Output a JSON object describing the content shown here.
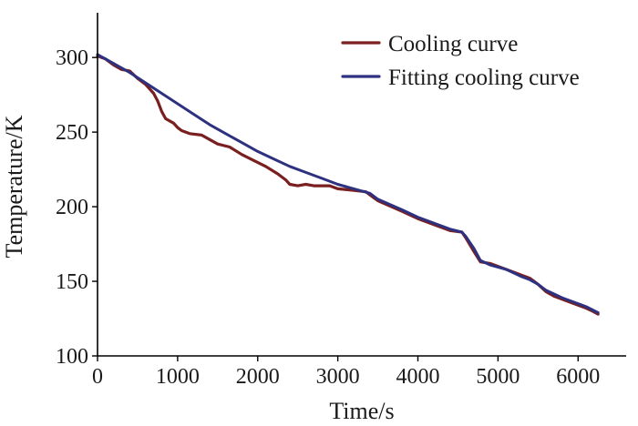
{
  "chart_data": {
    "type": "line",
    "title": "",
    "xlabel": "Time/s",
    "ylabel": "Temperature/K",
    "xlim": [
      0,
      6600
    ],
    "ylim": [
      100,
      330
    ],
    "xticks": [
      0,
      1000,
      2000,
      3000,
      4000,
      5000,
      6000
    ],
    "yticks": [
      100,
      150,
      200,
      250,
      300
    ],
    "xtick_labels": [
      "0",
      "1000",
      "2000",
      "3000",
      "4000",
      "5000",
      "6000"
    ],
    "ytick_labels": [
      "100",
      "150",
      "200",
      "250",
      "300"
    ],
    "grid": false,
    "legend_position": "top-right",
    "series": [
      {
        "name": "Cooling curve",
        "color": "#7a1f1f",
        "points": [
          [
            0,
            301
          ],
          [
            100,
            299
          ],
          [
            200,
            295
          ],
          [
            300,
            292
          ],
          [
            400,
            291
          ],
          [
            500,
            286
          ],
          [
            600,
            282
          ],
          [
            700,
            276
          ],
          [
            750,
            271
          ],
          [
            800,
            264
          ],
          [
            850,
            259
          ],
          [
            950,
            256
          ],
          [
            1000,
            253
          ],
          [
            1050,
            251
          ],
          [
            1150,
            249
          ],
          [
            1300,
            248
          ],
          [
            1400,
            245
          ],
          [
            1500,
            242
          ],
          [
            1650,
            240
          ],
          [
            1800,
            235
          ],
          [
            1950,
            231
          ],
          [
            2100,
            227
          ],
          [
            2250,
            222
          ],
          [
            2350,
            218
          ],
          [
            2400,
            215
          ],
          [
            2500,
            214
          ],
          [
            2600,
            215
          ],
          [
            2700,
            214
          ],
          [
            2900,
            214
          ],
          [
            3000,
            212
          ],
          [
            3200,
            211
          ],
          [
            3350,
            210
          ],
          [
            3450,
            206
          ],
          [
            3500,
            204
          ],
          [
            3800,
            197
          ],
          [
            4000,
            192
          ],
          [
            4200,
            188
          ],
          [
            4400,
            184
          ],
          [
            4550,
            183
          ],
          [
            4600,
            179
          ],
          [
            4700,
            170
          ],
          [
            4780,
            163
          ],
          [
            4900,
            162
          ],
          [
            5100,
            158
          ],
          [
            5300,
            154
          ],
          [
            5400,
            152
          ],
          [
            5500,
            148
          ],
          [
            5600,
            143
          ],
          [
            5700,
            140
          ],
          [
            5900,
            136
          ],
          [
            6000,
            134
          ],
          [
            6100,
            132
          ],
          [
            6180,
            130
          ],
          [
            6250,
            128
          ]
        ]
      },
      {
        "name": "Fitting cooling curve",
        "color": "#2e3180",
        "points": [
          [
            0,
            302
          ],
          [
            200,
            296
          ],
          [
            400,
            290
          ],
          [
            600,
            283
          ],
          [
            800,
            276
          ],
          [
            1000,
            269
          ],
          [
            1200,
            262
          ],
          [
            1400,
            255
          ],
          [
            1600,
            249
          ],
          [
            1800,
            243
          ],
          [
            2000,
            237
          ],
          [
            2200,
            232
          ],
          [
            2400,
            227
          ],
          [
            2600,
            223
          ],
          [
            2800,
            219
          ],
          [
            3000,
            215
          ],
          [
            3200,
            212
          ],
          [
            3400,
            209
          ],
          [
            3500,
            205
          ],
          [
            3800,
            198
          ],
          [
            4000,
            193
          ],
          [
            4200,
            189
          ],
          [
            4400,
            185
          ],
          [
            4550,
            183
          ],
          [
            4600,
            180
          ],
          [
            4700,
            172
          ],
          [
            4780,
            164
          ],
          [
            4900,
            161
          ],
          [
            5100,
            158
          ],
          [
            5300,
            153
          ],
          [
            5400,
            151
          ],
          [
            5500,
            148
          ],
          [
            5600,
            144
          ],
          [
            5800,
            139
          ],
          [
            6000,
            135
          ],
          [
            6100,
            133
          ],
          [
            6250,
            129
          ]
        ]
      }
    ]
  }
}
